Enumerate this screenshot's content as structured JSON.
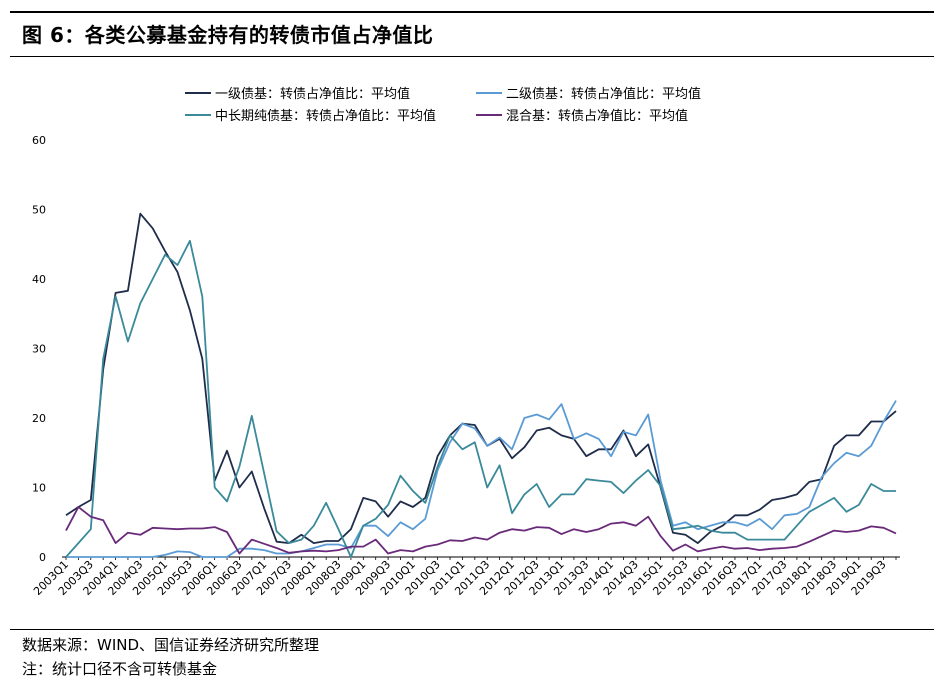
{
  "title": "图 6：各类公募基金持有的转债市值占净值比",
  "source": "数据来源：WIND、国信证券经济研究所整理",
  "note": "注：统计口径不含可转债基金",
  "chart_data": {
    "type": "line",
    "title": "",
    "xlabel": "",
    "ylabel": "",
    "ylim": [
      0,
      60
    ],
    "yticks": [
      0,
      10,
      20,
      30,
      40,
      50,
      60
    ],
    "grid": false,
    "legend_position": "top",
    "x": [
      "2003Q1",
      "2003Q2",
      "2003Q3",
      "2003Q4",
      "2004Q1",
      "2004Q2",
      "2004Q3",
      "2004Q4",
      "2005Q1",
      "2005Q2",
      "2005Q3",
      "2005Q4",
      "2006Q1",
      "2006Q2",
      "2006Q3",
      "2006Q4",
      "2007Q1",
      "2007Q2",
      "2007Q3",
      "2007Q4",
      "2008Q1",
      "2008Q2",
      "2008Q3",
      "2008Q4",
      "2009Q1",
      "2009Q2",
      "2009Q3",
      "2009Q4",
      "2010Q1",
      "2010Q2",
      "2010Q3",
      "2010Q4",
      "2011Q1",
      "2011Q2",
      "2011Q3",
      "2011Q4",
      "2012Q1",
      "2012Q2",
      "2012Q3",
      "2012Q4",
      "2013Q1",
      "2013Q2",
      "2013Q3",
      "2013Q4",
      "2014Q1",
      "2014Q2",
      "2014Q3",
      "2014Q4",
      "2015Q1",
      "2015Q2",
      "2015Q3",
      "2015Q4",
      "2016Q1",
      "2016Q2",
      "2016Q3",
      "2016Q4",
      "2017Q1",
      "2017Q2",
      "2017Q3",
      "2017Q4",
      "2018Q1",
      "2018Q2",
      "2018Q3",
      "2018Q4",
      "2019Q1",
      "2019Q2",
      "2019Q3",
      "2019Q4"
    ],
    "xticks": [
      "2003Q1",
      "2003Q3",
      "2004Q1",
      "2004Q3",
      "2005Q1",
      "2005Q3",
      "2006Q1",
      "2006Q3",
      "2007Q1",
      "2007Q3",
      "2008Q1",
      "2008Q3",
      "2009Q1",
      "2009Q3",
      "2010Q1",
      "2010Q3",
      "2011Q1",
      "2011Q3",
      "2012Q1",
      "2012Q3",
      "2013Q1",
      "2013Q3",
      "2014Q1",
      "2014Q3",
      "2015Q1",
      "2015Q3",
      "2016Q1",
      "2016Q3",
      "2017Q1",
      "2017Q3",
      "2018Q1",
      "2018Q3",
      "2019Q1",
      "2019Q3"
    ],
    "series": [
      {
        "name": "一级债基：转债占净值比：平均值",
        "color": "#1f2d4a",
        "values": [
          6.0,
          7.2,
          8.2,
          27.0,
          38.0,
          38.3,
          49.4,
          47.3,
          44.0,
          41.0,
          35.5,
          28.5,
          11.0,
          15.3,
          10.0,
          12.3,
          7.0,
          2.2,
          2.0,
          3.2,
          2.0,
          2.3,
          2.3,
          4.0,
          8.5,
          8.0,
          5.8,
          8.0,
          7.2,
          8.5,
          14.5,
          17.5,
          19.2,
          19.0,
          16.0,
          17.0,
          14.2,
          15.8,
          18.2,
          18.6,
          17.5,
          17.0,
          14.5,
          15.5,
          15.5,
          18.2,
          14.5,
          16.2,
          10.0,
          3.5,
          3.2,
          2.0,
          3.6,
          4.5,
          6.0,
          6.0,
          6.8,
          8.2,
          8.5,
          9.0,
          10.8,
          11.2,
          16.0,
          17.5,
          17.5,
          19.5,
          19.5,
          21.0
        ]
      },
      {
        "name": "二级债基：转债占净值比：平均值",
        "color": "#5b9bd5",
        "values": [
          0.0,
          0.0,
          0.0,
          0.0,
          0.0,
          0.0,
          0.0,
          0.0,
          0.3,
          0.8,
          0.7,
          0.0,
          0.0,
          0.0,
          1.2,
          1.2,
          1.0,
          0.5,
          0.5,
          0.8,
          1.3,
          1.8,
          1.8,
          1.3,
          4.5,
          4.5,
          3.0,
          5.0,
          4.0,
          5.5,
          12.5,
          16.5,
          19.2,
          18.5,
          16.0,
          17.2,
          15.5,
          20.0,
          20.5,
          19.8,
          22.0,
          17.0,
          17.8,
          17.0,
          14.5,
          18.0,
          17.5,
          20.5,
          11.0,
          4.5,
          5.0,
          4.0,
          4.5,
          5.0,
          5.0,
          4.5,
          5.5,
          4.0,
          6.0,
          6.2,
          7.2,
          11.5,
          13.5,
          15.0,
          14.5,
          16.0,
          19.5,
          22.5
        ]
      },
      {
        "name": "中长期纯债基：转债占净值比：平均值",
        "color": "#3a8a9a",
        "values": [
          0.0,
          2.0,
          4.0,
          28.5,
          37.5,
          31.0,
          36.5,
          40.0,
          43.5,
          42.0,
          45.5,
          37.5,
          10.0,
          8.0,
          13.0,
          20.3,
          12.0,
          3.7,
          2.0,
          2.5,
          4.5,
          7.8,
          4.0,
          0.0,
          4.5,
          5.5,
          7.5,
          11.7,
          9.5,
          7.8,
          13.0,
          17.5,
          15.5,
          16.5,
          10.0,
          13.2,
          6.3,
          9.0,
          10.5,
          7.2,
          9.0,
          9.0,
          11.2,
          11.0,
          10.8,
          9.2,
          11.0,
          12.5,
          10.2,
          4.0,
          4.2,
          4.5,
          3.8,
          3.5,
          3.5,
          2.5,
          2.5,
          2.5,
          2.5,
          4.5,
          6.5,
          7.5,
          8.5,
          6.5,
          7.5,
          10.5,
          9.5,
          9.5
        ]
      },
      {
        "name": "混合基：转债占净值比：平均值",
        "color": "#6a2a7a",
        "values": [
          3.8,
          7.2,
          5.8,
          5.3,
          2.0,
          3.5,
          3.2,
          4.2,
          4.1,
          4.0,
          4.1,
          4.1,
          4.3,
          3.6,
          0.5,
          2.5,
          1.9,
          1.3,
          0.6,
          0.8,
          0.9,
          0.8,
          1.0,
          1.5,
          1.5,
          2.5,
          0.5,
          1.0,
          0.8,
          1.5,
          1.8,
          2.4,
          2.3,
          2.8,
          2.5,
          3.5,
          4.0,
          3.8,
          4.3,
          4.2,
          3.3,
          4.0,
          3.6,
          4.0,
          4.8,
          5.0,
          4.5,
          5.8,
          3.0,
          0.9,
          1.8,
          0.8,
          1.2,
          1.5,
          1.2,
          1.3,
          1.0,
          1.2,
          1.3,
          1.5,
          2.2,
          3.0,
          3.8,
          3.6,
          3.8,
          4.4,
          4.2,
          3.4
        ]
      }
    ]
  }
}
